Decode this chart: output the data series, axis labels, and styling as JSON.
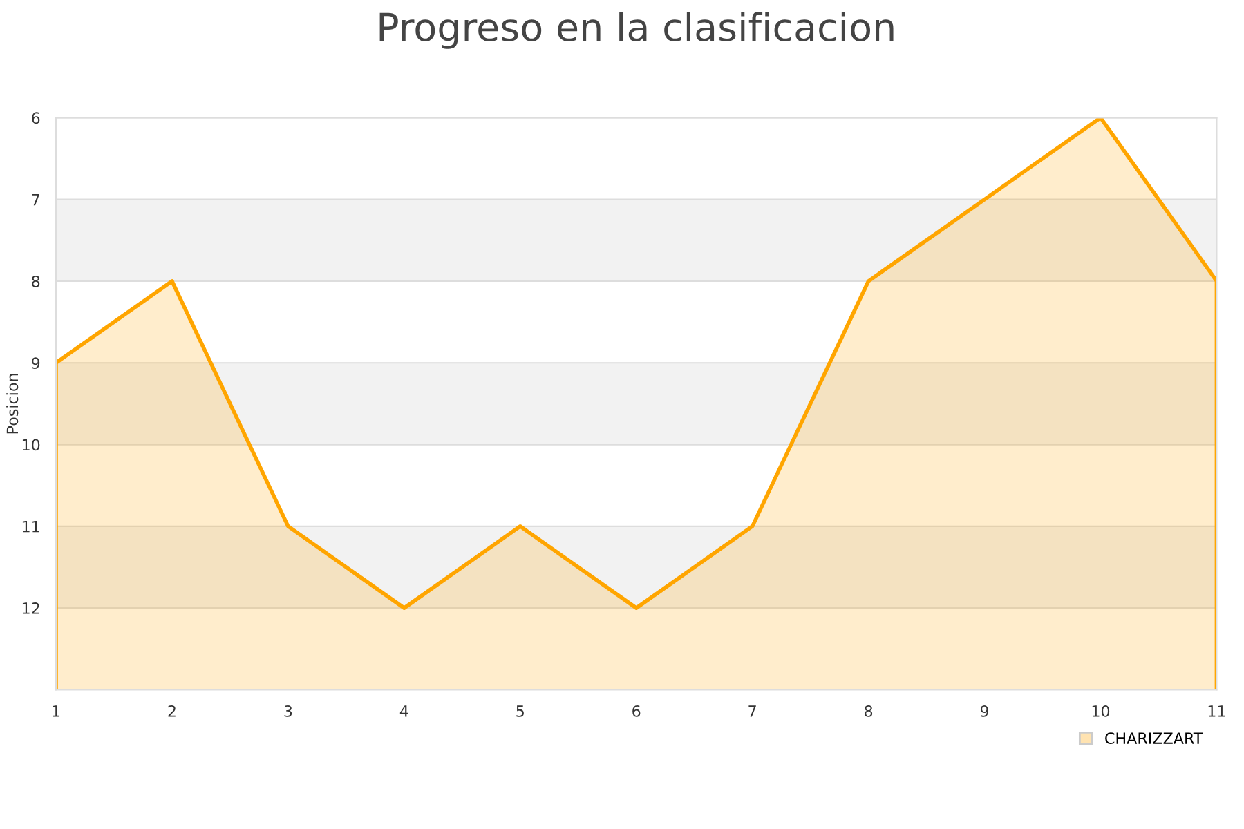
{
  "chart_data": {
    "type": "area",
    "title": "Progreso en la clasificacion",
    "ylabel": "Posicion",
    "x": [
      1,
      2,
      3,
      4,
      5,
      6,
      7,
      8,
      9,
      10,
      11
    ],
    "series": [
      {
        "name": "CHARIZZART",
        "color": "#ffa500",
        "values": [
          9,
          8,
          11,
          12,
          11,
          12,
          11,
          8,
          7,
          6,
          8
        ]
      }
    ],
    "xlim": [
      1,
      11
    ],
    "xticks": [
      1,
      2,
      3,
      4,
      5,
      6,
      7,
      8,
      9,
      10,
      11
    ],
    "ylim": [
      13,
      6
    ],
    "yticks": [
      6,
      7,
      8,
      9,
      10,
      11,
      12
    ],
    "bands": [
      {
        "axis": "y",
        "from": 7,
        "to": 8,
        "color": "#f2f2f2"
      },
      {
        "axis": "y",
        "from": 9,
        "to": 10,
        "color": "#f2f2f2"
      },
      {
        "axis": "y",
        "from": 11,
        "to": 12,
        "color": "#f2f2f2"
      }
    ],
    "grid": "y",
    "legend": "bottom right"
  }
}
